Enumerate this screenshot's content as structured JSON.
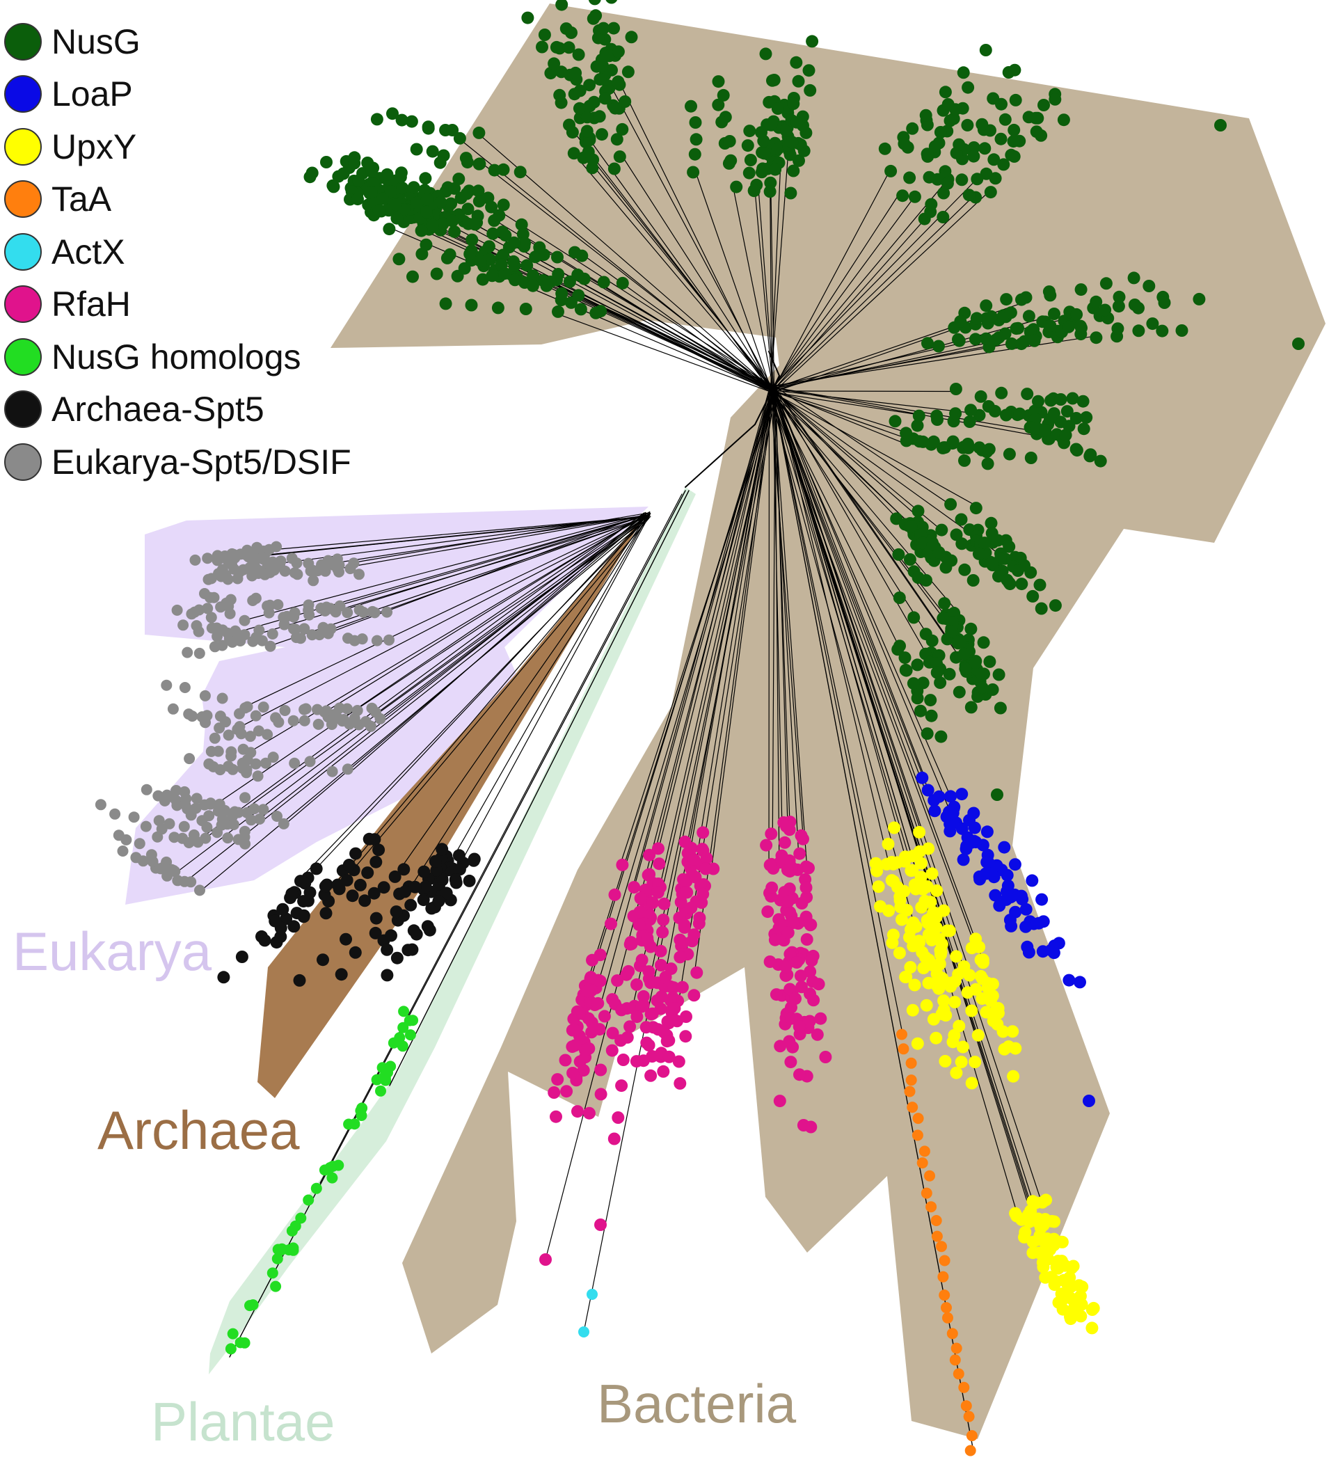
{
  "legend": [
    {
      "label": "NusG",
      "color": "#0b5e0b"
    },
    {
      "label": "LoaP",
      "color": "#0a0ae6"
    },
    {
      "label": "UpxY",
      "color": "#ffff00"
    },
    {
      "label": "TaA",
      "color": "#ff7f0e"
    },
    {
      "label": "ActX",
      "color": "#33ddee"
    },
    {
      "label": "RfaH",
      "color": "#e0138c"
    },
    {
      "label": "NusG homologs",
      "color": "#22dd22"
    },
    {
      "label": "Archaea-Spt5",
      "color": "#111111"
    },
    {
      "label": "Eukarya-Spt5/DSIF",
      "color": "#8a8a8a"
    }
  ],
  "clades": [
    {
      "label": "Eukarya",
      "color": "#d5c5ee",
      "fill": "#e6d9fa"
    },
    {
      "label": "Archaea",
      "color": "#9b6e45",
      "fill": "#a87b50"
    },
    {
      "label": "Plantae",
      "color": "#c6e3ce",
      "fill": "#d6eedb"
    },
    {
      "label": "Bacteria",
      "color": "#a8987c",
      "fill": "#c3b49b"
    }
  ]
}
